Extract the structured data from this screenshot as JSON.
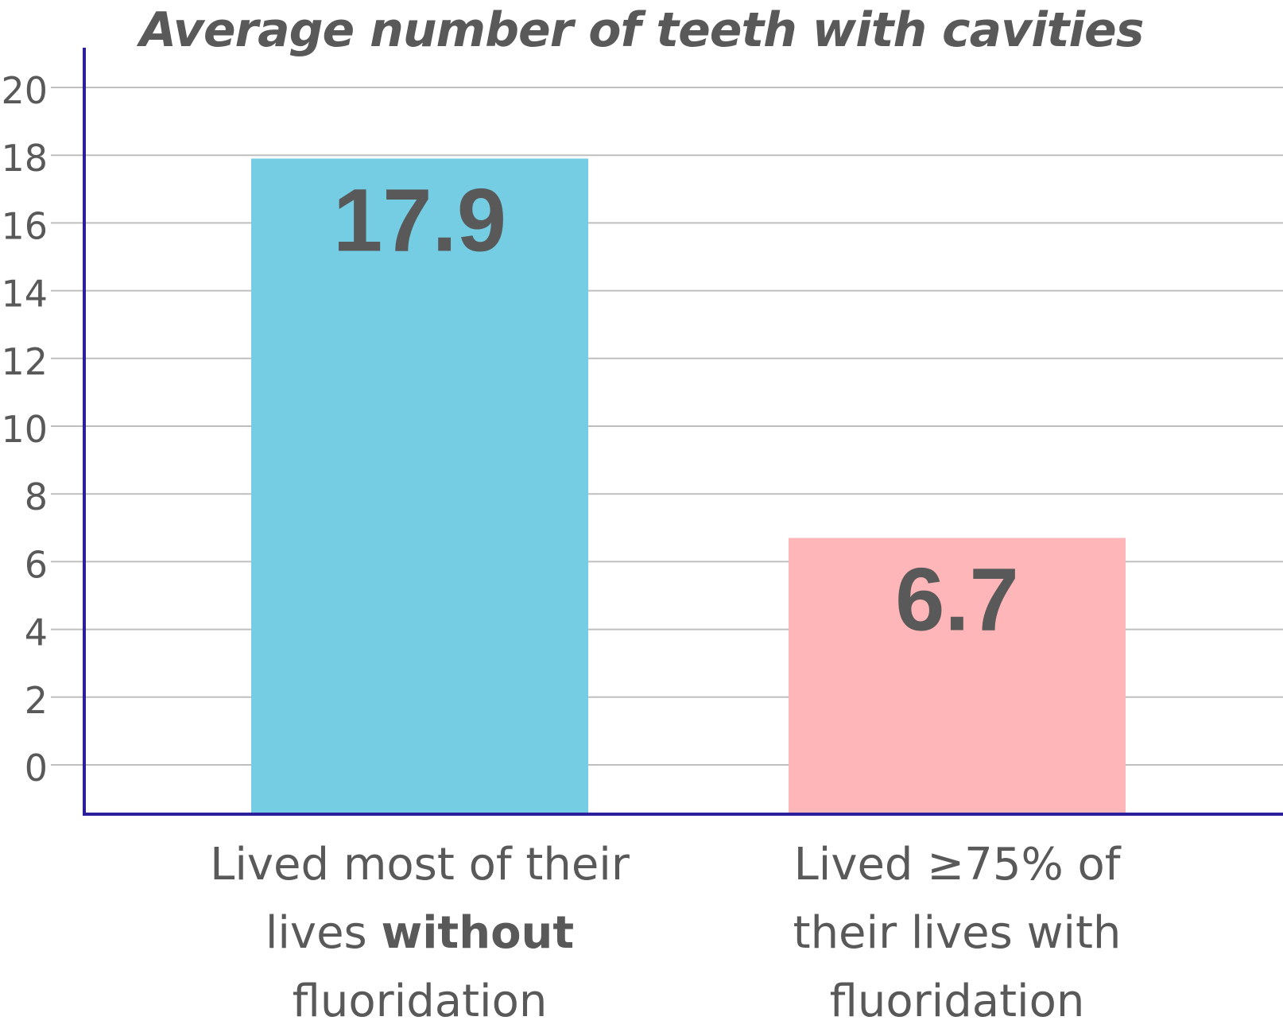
{
  "chart_data": {
    "type": "bar",
    "title": "Average number of teeth with cavities",
    "categories": [
      "Lived most of their lives without fluoridation",
      "Lived ≥75% of their lives with fluoridation"
    ],
    "category_label_lines": [
      [
        [
          {
            "text": "Lived most of their",
            "bold": false
          }
        ],
        [
          {
            "text": "lives ",
            "bold": false
          },
          {
            "text": "without",
            "bold": true
          }
        ],
        [
          {
            "text": "fluoridation",
            "bold": false
          }
        ]
      ],
      [
        [
          {
            "text": "Lived ≥75% of",
            "bold": false
          }
        ],
        [
          {
            "text": "their lives with",
            "bold": false
          }
        ],
        [
          {
            "text": "fluoridation",
            "bold": false
          }
        ]
      ]
    ],
    "values": [
      17.9,
      6.7
    ],
    "value_labels": [
      "17.9",
      "6.7"
    ],
    "bar_colors": [
      "#74CDE2",
      "#FFB6B9"
    ],
    "ylim": [
      0,
      20
    ],
    "yticks": [
      0,
      2,
      4,
      6,
      8,
      10,
      12,
      14,
      16,
      18,
      20
    ],
    "xlabel": "",
    "ylabel": "",
    "grid": true,
    "colors": {
      "axis": "#2B1F9B",
      "grid": "#BFBFBF",
      "text": "#595959"
    }
  }
}
